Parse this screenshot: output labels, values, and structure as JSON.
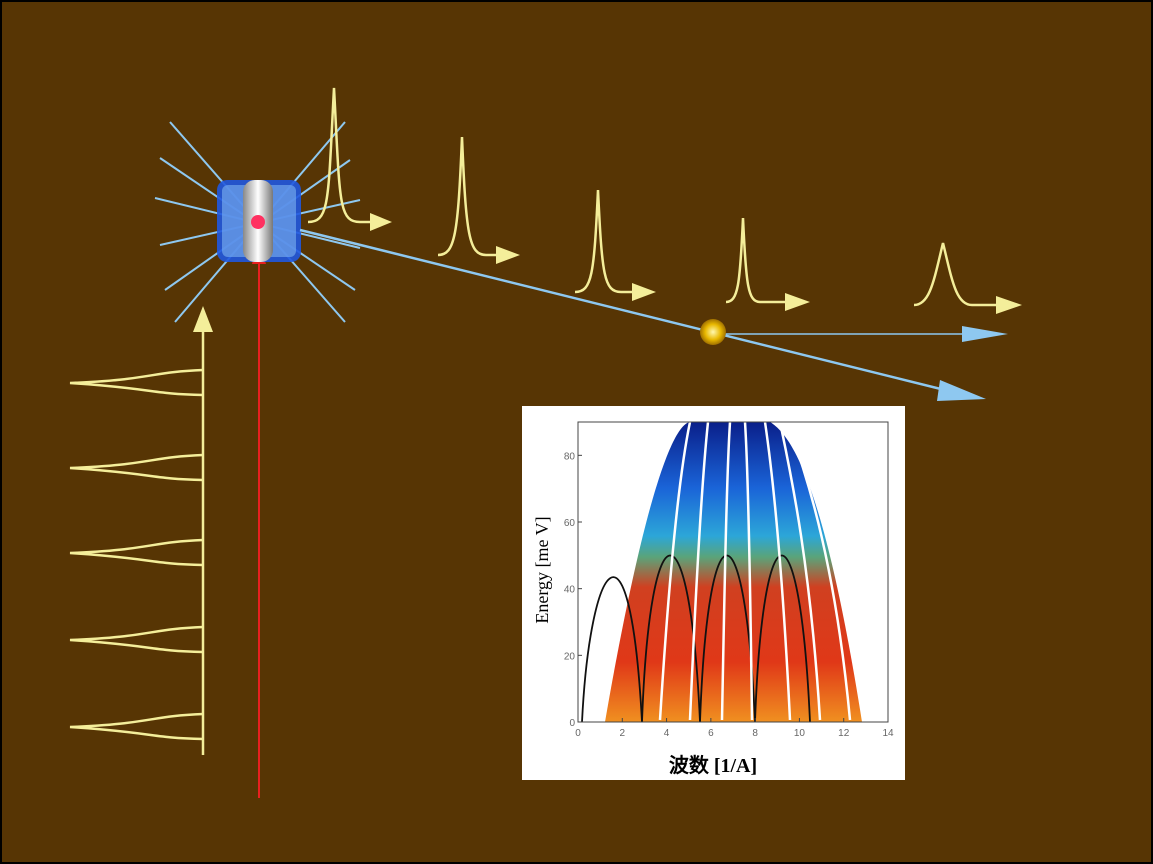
{
  "inset": {
    "y_label": "Energy [me V]",
    "x_label": "波数 [1/A]",
    "xlim": [
      0,
      14
    ],
    "ylim": [
      0,
      90
    ],
    "xticks": [
      0,
      2,
      4,
      6,
      8,
      10,
      12,
      14
    ],
    "yticks": [
      0,
      20,
      40,
      60,
      80
    ]
  }
}
